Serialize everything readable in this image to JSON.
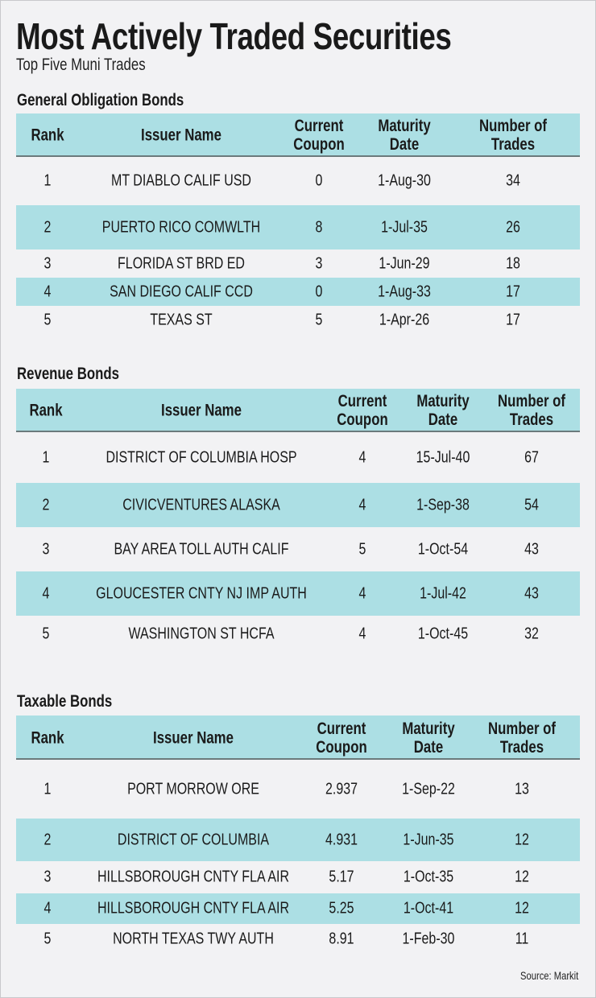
{
  "title": "Most Actively Traded Securities",
  "subtitle": "Top Five Muni Trades",
  "source": "Source: Markit",
  "colors": {
    "background": "#f2f2f4",
    "band": "#acdfe4"
  },
  "columns": [
    "Rank",
    "Issuer Name",
    "Current Coupon",
    "Maturity Date",
    "Number of Trades"
  ],
  "tables": [
    {
      "title": "General Obligation Bonds",
      "rows": [
        [
          "1",
          "MT DIABLO CALIF USD",
          "0",
          "1-Aug-30",
          "34"
        ],
        [
          "2",
          "PUERTO RICO COMWLTH",
          "8",
          "1-Jul-35",
          "26"
        ],
        [
          "3",
          "FLORIDA ST BRD ED",
          "3",
          "1-Jun-29",
          "18"
        ],
        [
          "4",
          "SAN DIEGO CALIF CCD",
          "0",
          "1-Aug-33",
          "17"
        ],
        [
          "5",
          "TEXAS ST",
          "5",
          "1-Apr-26",
          "17"
        ]
      ]
    },
    {
      "title": "Revenue Bonds",
      "rows": [
        [
          "1",
          "DISTRICT OF COLUMBIA HOSP",
          "4",
          "15-Jul-40",
          "67"
        ],
        [
          "2",
          "CIVICVENTURES ALASKA",
          "4",
          "1-Sep-38",
          "54"
        ],
        [
          "3",
          "BAY AREA TOLL AUTH CALIF",
          "5",
          "1-Oct-54",
          "43"
        ],
        [
          "4",
          "GLOUCESTER CNTY NJ IMP AUTH",
          "4",
          "1-Jul-42",
          "43"
        ],
        [
          "5",
          "WASHINGTON ST HCFA",
          "4",
          "1-Oct-45",
          "32"
        ]
      ]
    },
    {
      "title": "Taxable Bonds",
      "rows": [
        [
          "1",
          "PORT MORROW ORE",
          "2.937",
          "1-Sep-22",
          "13"
        ],
        [
          "2",
          "DISTRICT OF COLUMBIA",
          "4.931",
          "1-Jun-35",
          "12"
        ],
        [
          "3",
          "HILLSBOROUGH CNTY FLA AIR",
          "5.17",
          "1-Oct-35",
          "12"
        ],
        [
          "4",
          "HILLSBOROUGH CNTY FLA AIR",
          "5.25",
          "1-Oct-41",
          "12"
        ],
        [
          "5",
          "NORTH TEXAS TWY AUTH",
          "8.91",
          "1-Feb-30",
          "11"
        ]
      ]
    }
  ]
}
